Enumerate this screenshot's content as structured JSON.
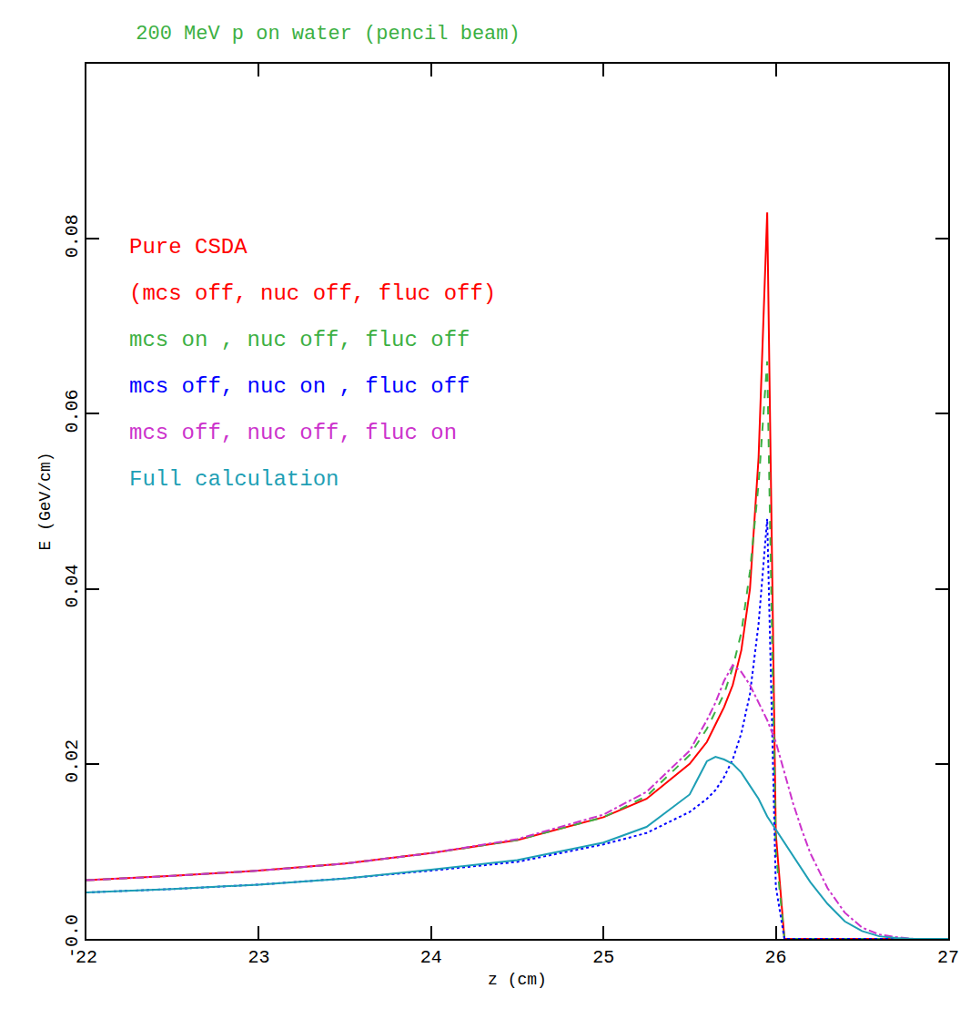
{
  "chart_data": {
    "type": "line",
    "title": "200 MeV p on water (pencil beam)",
    "x_label": "z (cm)",
    "y_label": "E (GeV/cm)",
    "x": [
      22,
      22.5,
      23,
      23.5,
      24,
      24.5,
      25,
      25.25,
      25.5,
      25.6,
      25.65,
      25.7,
      25.75,
      25.8,
      25.85,
      25.9,
      25.95,
      26,
      26.05,
      26.1,
      26.15,
      26.2,
      26.3,
      26.4,
      26.5,
      26.6,
      26.7,
      26.8,
      27
    ],
    "series": [
      {
        "name": "Pure CSDA\n(mcs off, nuc off, fluc off)",
        "color": "#ff0000",
        "line_style": "solid",
        "values": [
          0.0067,
          0.0072,
          0.0078,
          0.0086,
          0.0098,
          0.0113,
          0.0139,
          0.016,
          0.02,
          0.0225,
          0.0245,
          0.0265,
          0.029,
          0.033,
          0.04,
          0.055,
          0.083,
          0.012,
          0,
          0,
          0,
          0,
          0,
          0,
          0,
          0,
          0,
          0,
          0
        ]
      },
      {
        "name": "mcs on , nuc off, fluc off",
        "color": "#3cb043",
        "line_style": "dash",
        "values": [
          0.0067,
          0.0072,
          0.0078,
          0.0086,
          0.0098,
          0.0113,
          0.0139,
          0.0163,
          0.021,
          0.024,
          0.026,
          0.028,
          0.031,
          0.035,
          0.042,
          0.052,
          0.066,
          0.01,
          0,
          0,
          0,
          0,
          0,
          0,
          0,
          0,
          0,
          0,
          0
        ]
      },
      {
        "name": "mcs off, nuc on , fluc off",
        "color": "#0000ff",
        "line_style": "dot",
        "values": [
          0.0053,
          0.0057,
          0.0062,
          0.0069,
          0.0078,
          0.0088,
          0.0108,
          0.0121,
          0.0145,
          0.016,
          0.017,
          0.0185,
          0.0205,
          0.0235,
          0.028,
          0.036,
          0.048,
          0.006,
          0,
          0,
          0,
          0,
          0,
          0,
          0,
          0,
          0,
          0,
          0
        ]
      },
      {
        "name": "mcs off, nuc off, fluc on",
        "color": "#cc33cc",
        "line_style": "dashdot",
        "values": [
          0.0067,
          0.0072,
          0.0078,
          0.0086,
          0.0098,
          0.0114,
          0.0142,
          0.0168,
          0.0215,
          0.025,
          0.027,
          0.0295,
          0.0313,
          0.0305,
          0.029,
          0.027,
          0.025,
          0.0225,
          0.019,
          0.0155,
          0.0125,
          0.0098,
          0.0058,
          0.003,
          0.0013,
          0.0005,
          0.0002,
          0,
          0
        ]
      },
      {
        "name": "Full calculation",
        "color": "#1e9fb5",
        "line_style": "solid",
        "values": [
          0.0053,
          0.0057,
          0.0062,
          0.0069,
          0.0079,
          0.009,
          0.011,
          0.0128,
          0.0165,
          0.0203,
          0.0208,
          0.0205,
          0.02,
          0.019,
          0.0175,
          0.016,
          0.014,
          0.0125,
          0.011,
          0.0095,
          0.008,
          0.0065,
          0.004,
          0.002,
          0.0009,
          0.0003,
          0.0001,
          0,
          0
        ]
      }
    ],
    "xlim": [
      22,
      27
    ],
    "xticks": [
      22,
      23,
      24,
      25,
      26,
      27
    ],
    "ylim": [
      0,
      0.1
    ],
    "yticks": [
      {
        "value": 0,
        "label": "-0.0"
      },
      0.02,
      0.04,
      0.06,
      0.08
    ],
    "grid": false,
    "legend": "upper left"
  }
}
